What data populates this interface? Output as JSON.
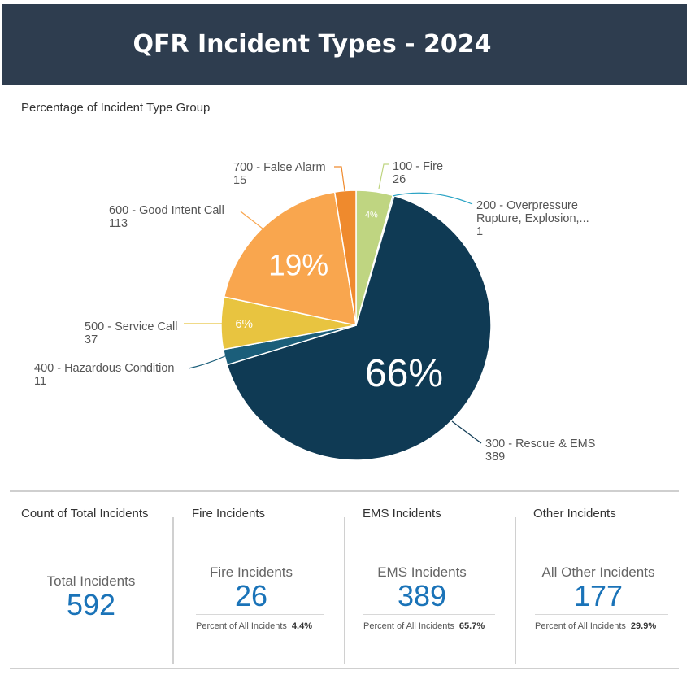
{
  "header": {
    "title": "QFR Incident Types - 2024"
  },
  "chart_data": {
    "type": "pie",
    "title": "Percentage of Incident Type Group",
    "slices": [
      {
        "label": "100 - Fire",
        "value": 26,
        "color": "#bfd581",
        "pct_label": "4%"
      },
      {
        "label": "200 - Overpressure Rupture, Explosion,...",
        "value": 1,
        "color": "#2aa3c4",
        "pct_label": ""
      },
      {
        "label": "300 - Rescue & EMS",
        "value": 389,
        "color": "#0f3a54",
        "pct_label": "66%"
      },
      {
        "label": "400 - Hazardous Condition",
        "value": 11,
        "color": "#1b5e7a",
        "pct_label": ""
      },
      {
        "label": "500 - Service Call",
        "value": 37,
        "color": "#e8c440",
        "pct_label": "6%"
      },
      {
        "label": "600 - Good Intent Call",
        "value": 113,
        "color": "#f9a64e",
        "pct_label": "19%"
      },
      {
        "label": "700 - False Alarm",
        "value": 15,
        "color": "#ef8a2d",
        "pct_label": ""
      }
    ]
  },
  "cards": [
    {
      "title": "Count of Total Incidents",
      "kpi_label": "Total Incidents",
      "value": "592"
    },
    {
      "title": "Fire Incidents",
      "kpi_label": "Fire Incidents",
      "value": "26",
      "pct_text": "Percent of All Incidents",
      "pct_value": "4.4%"
    },
    {
      "title": "EMS Incidents",
      "kpi_label": "EMS Incidents",
      "value": "389",
      "pct_text": "Percent of All Incidents",
      "pct_value": "65.7%"
    },
    {
      "title": "Other Incidents",
      "kpi_label": "All Other Incidents",
      "value": "177",
      "pct_text": "Percent of All Incidents",
      "pct_value": "29.9%"
    }
  ]
}
